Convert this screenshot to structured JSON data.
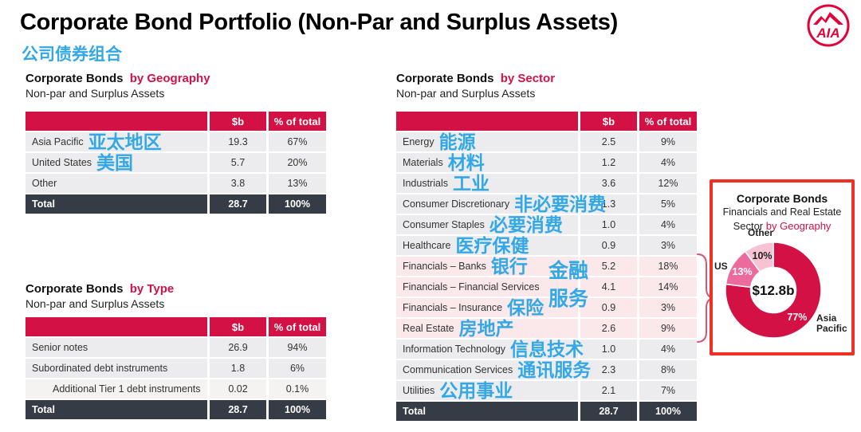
{
  "slide": {
    "title": "Corporate Bond Portfolio (Non-Par and Surplus Assets)",
    "title_zh": "公司债券组合",
    "logo_text": "AIA"
  },
  "colors": {
    "crimson": "#D31145",
    "panel_border": "#EE3124",
    "annotation_blue": "#33A8E5",
    "row_gray": "#ECECEE",
    "row_pink": "#FAE8EB",
    "total_dark": "#363C46"
  },
  "tables": {
    "geography": {
      "title_main": "Corporate Bonds",
      "title_accent": "by Geography",
      "subtitle": "Non-par and Surplus Assets",
      "col_b": "$b",
      "col_pct": "% of total",
      "rows": [
        {
          "label": "Asia Pacific",
          "zh": "亚太地区",
          "b": "19.3",
          "pct": "67%"
        },
        {
          "label": "United States",
          "zh": "美国",
          "b": "5.7",
          "pct": "20%"
        },
        {
          "label": "Other",
          "b": "3.8",
          "pct": "13%"
        }
      ],
      "total": {
        "label": "Total",
        "b": "28.7",
        "pct": "100%"
      }
    },
    "type": {
      "title_main": "Corporate Bonds",
      "title_accent": "by Type",
      "subtitle": "Non-par and Surplus Assets",
      "col_b": "$b",
      "col_pct": "% of total",
      "rows": [
        {
          "label": "Senior notes",
          "b": "26.9",
          "pct": "94%"
        },
        {
          "label": "Subordinated debt instruments",
          "b": "1.8",
          "pct": "6%"
        },
        {
          "label": "Additional Tier 1 debt instruments",
          "indent": true,
          "b": "0.02",
          "pct": "0.1%"
        }
      ],
      "total": {
        "label": "Total",
        "b": "28.7",
        "pct": "100%"
      }
    },
    "sector": {
      "title_main": "Corporate Bonds",
      "title_accent": "by Sector",
      "subtitle": "Non-par and Surplus Assets",
      "col_b": "$b",
      "col_pct": "% of total",
      "rows": [
        {
          "label": "Energy",
          "zh": "能源",
          "b": "2.5",
          "pct": "9%"
        },
        {
          "label": "Materials",
          "zh": "材料",
          "b": "1.2",
          "pct": "4%"
        },
        {
          "label": "Industrials",
          "zh": "工业",
          "b": "3.6",
          "pct": "12%"
        },
        {
          "label": "Consumer Discretionary",
          "zh": "非必要消费",
          "b": "1.3",
          "pct": "5%"
        },
        {
          "label": "Consumer Staples",
          "zh": "必要消费",
          "b": "1.0",
          "pct": "4%"
        },
        {
          "label": "Healthcare",
          "zh": "医疗保健",
          "b": "0.9",
          "pct": "3%"
        },
        {
          "label": "Financials – Banks",
          "zh": "银行",
          "highlight": true,
          "b": "5.2",
          "pct": "18%"
        },
        {
          "label": "Financials – Financial Services",
          "highlight": true,
          "b": "4.1",
          "pct": "14%"
        },
        {
          "label": "Financials – Insurance",
          "zh": "保险",
          "highlight": true,
          "b": "0.9",
          "pct": "3%"
        },
        {
          "label": "Real Estate",
          "zh": "房地产",
          "highlight": true,
          "b": "2.6",
          "pct": "9%"
        },
        {
          "label": "Information Technology",
          "zh": "信息技术",
          "b": "1.0",
          "pct": "4%"
        },
        {
          "label": "Communication Services",
          "zh": "通讯服务",
          "b": "2.3",
          "pct": "8%"
        },
        {
          "label": "Utilities",
          "zh": "公用事业",
          "b": "2.1",
          "pct": "7%"
        }
      ],
      "total": {
        "label": "Total",
        "b": "28.7",
        "pct": "100%"
      },
      "annotation_line1": "金融",
      "annotation_line2": "服务"
    }
  },
  "panel": {
    "title": "Corporate Bonds",
    "subtitle": "Financials and Real Estate",
    "line3_main": "Sector",
    "line3_accent": "by Geography",
    "center_label": "$12.8b",
    "out_labels": {
      "other": "Other",
      "us": "US",
      "asia_line1": "Asia",
      "asia_line2": "Pacific"
    }
  },
  "chart_data": {
    "type": "pie",
    "title": "Corporate Bonds Financials and Real Estate Sector by Geography",
    "center_label": "$12.8b",
    "legend_position": "around",
    "slices": [
      {
        "label": "Asia Pacific",
        "value_pct": 77,
        "text_label": "77%",
        "color": "#D31145",
        "text_color": "#FFFFFF"
      },
      {
        "label": "US",
        "value_pct": 13,
        "text_label": "13%",
        "color": "#EC6B9D",
        "text_color": "#FFFFFF"
      },
      {
        "label": "Other",
        "value_pct": 10,
        "text_label": "10%",
        "color": "#F7C3D3",
        "text_color": "#222222"
      }
    ]
  }
}
